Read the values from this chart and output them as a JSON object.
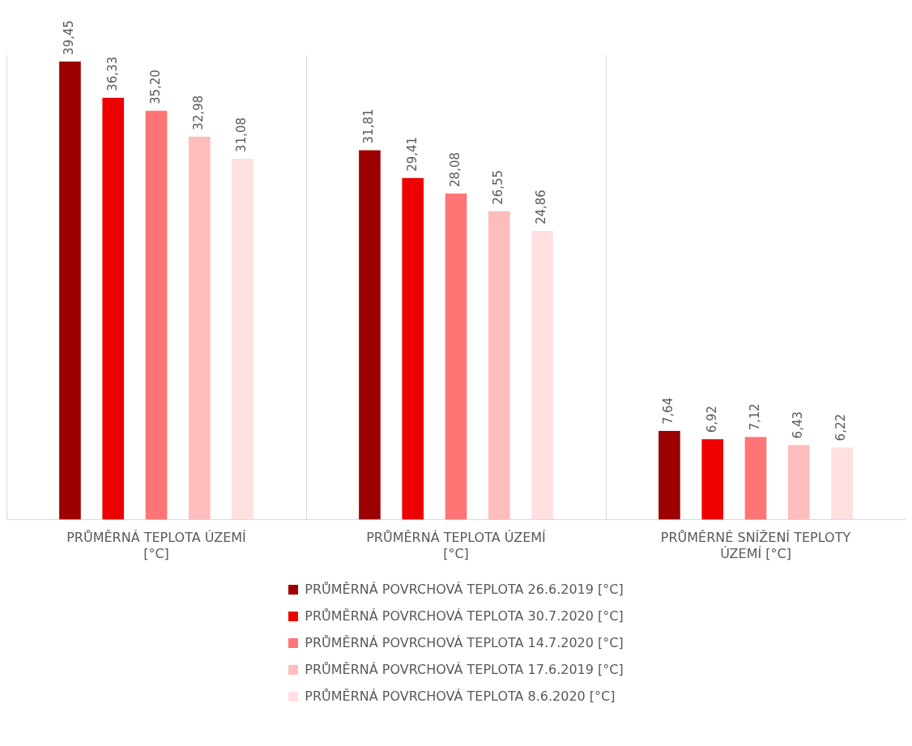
{
  "chart_data": {
    "type": "bar",
    "categories": [
      "PRŮMĚRNÁ TEPLOTA ÚZEMÍ [°C]",
      "PRŮMĚRNÁ TEPLOTA ÚZEMÍ [°C]",
      "PRŮMĚRNÉ SNÍŽENÍ TEPLOTY ÚZEMÍ [°C]"
    ],
    "series": [
      {
        "name": "PRŮMĚRNÁ POVRCHOVÁ TEPLOTA 26.6.2019 [°C]",
        "color": "#9c0000",
        "values": [
          39.45,
          31.81,
          7.64
        ],
        "value_labels": [
          "39,45",
          "31,81",
          "7,64"
        ]
      },
      {
        "name": "PRŮMĚRNÁ POVRCHOVÁ TEPLOTA 30.7.2020 [°C]",
        "color": "#ee0000",
        "values": [
          36.33,
          29.41,
          6.92
        ],
        "value_labels": [
          "36,33",
          "29,41",
          "6,92"
        ]
      },
      {
        "name": "PRŮMĚRNÁ POVRCHOVÁ TEPLOTA 14.7.2020 [°C]",
        "color": "#ff7575",
        "values": [
          35.2,
          28.08,
          7.12
        ],
        "value_labels": [
          "35,20",
          "28,08",
          "7,12"
        ]
      },
      {
        "name": "PRŮMĚRNÁ POVRCHOVÁ TEPLOTA 17.6.2019 [°C]",
        "color": "#ffbcbc",
        "values": [
          32.98,
          26.55,
          6.43
        ],
        "value_labels": [
          "32,98",
          "26,55",
          "6,43"
        ]
      },
      {
        "name": "PRŮMĚRNÁ POVRCHOVÁ TEPLOTA 8.6.2020 [°C]",
        "color": "#ffdfe0",
        "values": [
          31.08,
          24.86,
          6.22
        ],
        "value_labels": [
          "31,08",
          "24,86",
          "6,22"
        ]
      }
    ],
    "grid": "x",
    "legend": "bottom",
    "tick_labels": "x"
  }
}
